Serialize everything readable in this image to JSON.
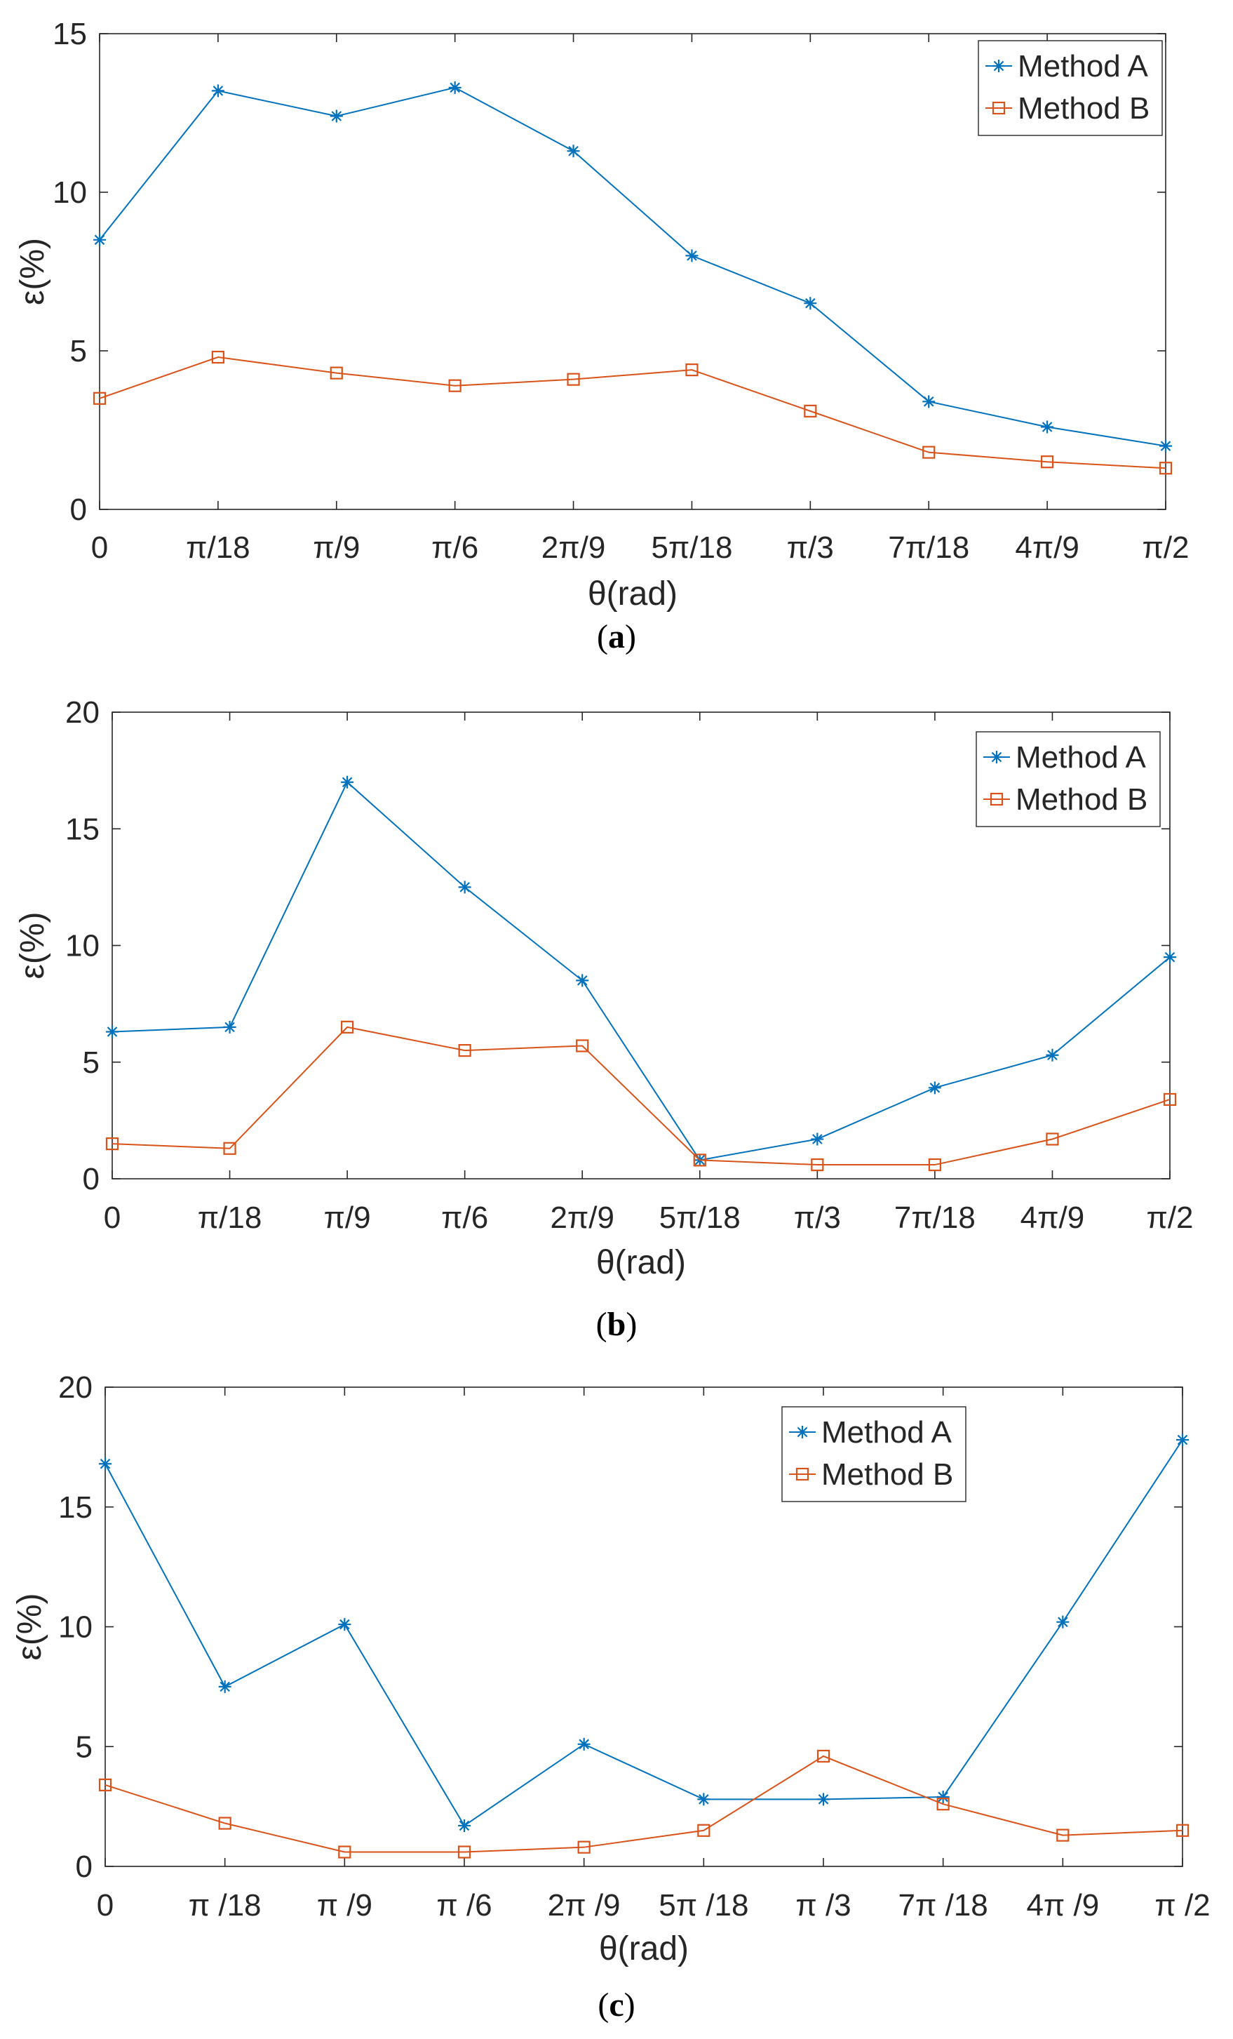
{
  "colors": {
    "method_a": "#0072BD",
    "method_b": "#D95319",
    "axis": "#262626"
  },
  "chart_data": [
    {
      "type": "line",
      "caption_letter": "a",
      "categories": [
        "0",
        "π/18",
        "π/9",
        "π/6",
        "2π/9",
        "5π/18",
        "π/3",
        "7π/18",
        "4π/9",
        "π/2"
      ],
      "xlabel": "θ(rad)",
      "ylabel": "ε(%)",
      "ylim": [
        0,
        15
      ],
      "yticks": [
        "0",
        "5",
        "10",
        "15"
      ],
      "legend_position": "top-right",
      "series": [
        {
          "name": "Method A",
          "marker": "asterisk",
          "values": [
            8.5,
            13.2,
            12.4,
            13.3,
            11.3,
            8.0,
            6.5,
            3.4,
            2.6,
            2.0
          ]
        },
        {
          "name": "Method B",
          "marker": "square",
          "values": [
            3.5,
            4.8,
            4.3,
            3.9,
            4.1,
            4.4,
            3.1,
            1.8,
            1.5,
            1.3
          ]
        }
      ]
    },
    {
      "type": "line",
      "caption_letter": "b",
      "categories": [
        "0",
        "π/18",
        "π/9",
        "π/6",
        "2π/9",
        "5π/18",
        "π/3",
        "7π/18",
        "4π/9",
        "π/2"
      ],
      "xlabel": "θ(rad)",
      "ylabel": "ε(%)",
      "ylim": [
        0,
        20
      ],
      "yticks": [
        "0",
        "5",
        "10",
        "15",
        "20"
      ],
      "legend_position": "top-right",
      "series": [
        {
          "name": "Method A",
          "marker": "asterisk",
          "values": [
            6.3,
            6.5,
            17.0,
            12.5,
            8.5,
            0.8,
            1.7,
            3.9,
            5.3,
            9.5
          ]
        },
        {
          "name": "Method B",
          "marker": "square",
          "values": [
            1.5,
            1.3,
            6.5,
            5.5,
            5.7,
            0.8,
            0.6,
            0.6,
            1.7,
            3.4
          ]
        }
      ]
    },
    {
      "type": "line",
      "caption_letter": "c",
      "categories": [
        "0",
        "π /18",
        "π /9",
        "π /6",
        "2π /9",
        "5π /18",
        "π /3",
        "7π /18",
        "4π /9",
        "π /2"
      ],
      "xlabel": "θ(rad)",
      "ylabel": "ε(%)",
      "ylim": [
        0,
        20
      ],
      "yticks": [
        "0",
        "5",
        "10",
        "15",
        "20"
      ],
      "legend_position": "top-right",
      "series": [
        {
          "name": "Method A",
          "marker": "asterisk",
          "values": [
            16.8,
            7.5,
            10.1,
            1.7,
            5.1,
            2.8,
            2.8,
            2.9,
            10.2,
            17.8
          ]
        },
        {
          "name": "Method B",
          "marker": "square",
          "values": [
            3.4,
            1.8,
            0.6,
            0.6,
            0.8,
            1.5,
            4.6,
            2.6,
            1.3,
            1.5
          ]
        }
      ]
    }
  ]
}
